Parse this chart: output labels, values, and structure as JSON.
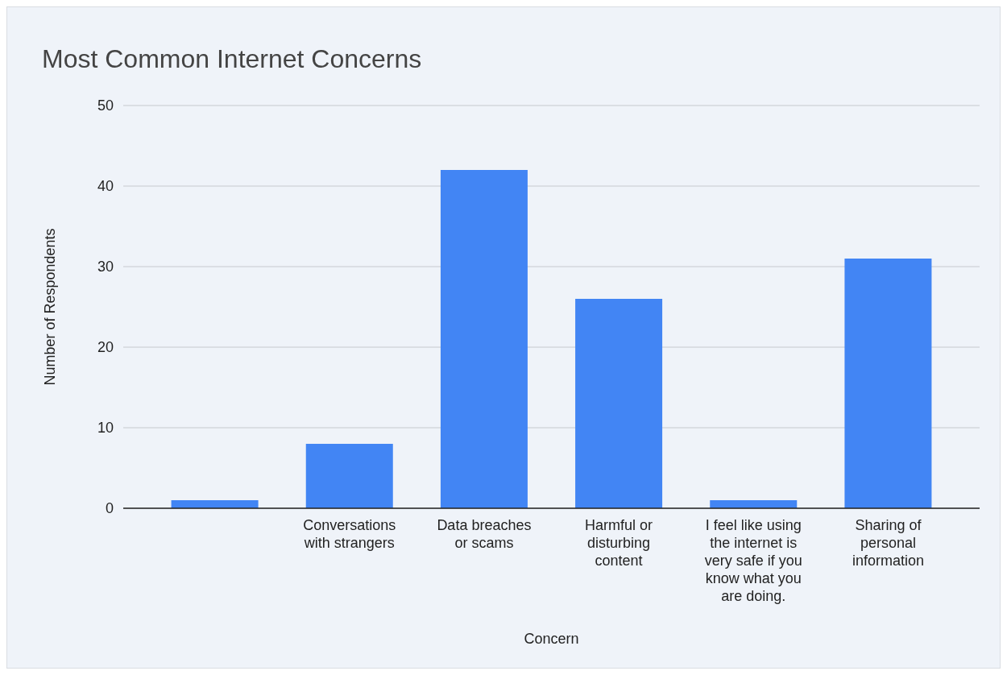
{
  "chart_data": {
    "type": "bar",
    "title": "Most Common Internet Concerns",
    "xlabel": "Concern",
    "ylabel": "Number of Respondents",
    "categories": [
      null,
      "Conversations with strangers",
      "Data breaches or scams",
      "Harmful or disturbing content",
      "I feel like using the internet is very safe if you know what you are doing.",
      "Sharing of personal information"
    ],
    "values": [
      1,
      8,
      42,
      26,
      1,
      31
    ],
    "color": "#4285f4",
    "ylim": [
      0,
      50
    ],
    "yticks": [
      0,
      10,
      20,
      30,
      40,
      50
    ],
    "grid": "y"
  }
}
